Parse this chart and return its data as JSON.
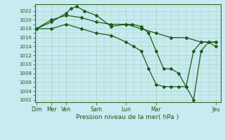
{
  "background_color": "#c8eaf0",
  "grid_color": "#a8d4c0",
  "line_color": "#1a5c1a",
  "xlabel": "Pression niveau de la mer( hPa )",
  "ylabel_ticks": [
    1002,
    1004,
    1006,
    1008,
    1010,
    1012,
    1014,
    1016,
    1018,
    1020,
    1022
  ],
  "xtick_positions": [
    0,
    1,
    2,
    4,
    6,
    8,
    12
  ],
  "xtick_labels": [
    "Dim",
    "Mer",
    "Ven",
    "Sam",
    "Lun",
    "Mar",
    "Jeu"
  ],
  "line1": {
    "x": [
      0,
      1,
      2,
      2.3,
      2.7,
      3.2,
      4,
      5,
      6,
      6.4,
      7,
      7.5,
      8,
      8.5,
      9,
      9.5,
      10,
      10.5,
      11,
      11.5,
      12
    ],
    "y": [
      1018,
      1019.5,
      1021.5,
      1022.5,
      1023,
      1022,
      1021,
      1018.5,
      1019,
      1019,
      1018.5,
      1017,
      1013,
      1009,
      1009,
      1008,
      1005,
      1002,
      1013,
      1015,
      1015
    ]
  },
  "line2": {
    "x": [
      0,
      1,
      2,
      3,
      4,
      5,
      6,
      7,
      8,
      9,
      10,
      11,
      12
    ],
    "y": [
      1018,
      1020,
      1021,
      1020.5,
      1019.5,
      1019,
      1019,
      1018,
      1017,
      1016,
      1016,
      1015,
      1015
    ]
  },
  "line3": {
    "x": [
      0,
      1,
      2,
      3,
      4,
      5,
      6,
      6.5,
      7,
      7.5,
      8,
      8.5,
      9,
      9.5,
      10,
      10.5,
      11,
      11.5,
      12
    ],
    "y": [
      1018,
      1018,
      1019,
      1018,
      1017,
      1016.5,
      1015,
      1014,
      1013,
      1009,
      1005.5,
      1005,
      1005,
      1005,
      1005,
      1013,
      1015,
      1015,
      1014
    ]
  },
  "ylim": [
    1001.5,
    1023.5
  ],
  "xlim": [
    -0.1,
    12.3
  ]
}
